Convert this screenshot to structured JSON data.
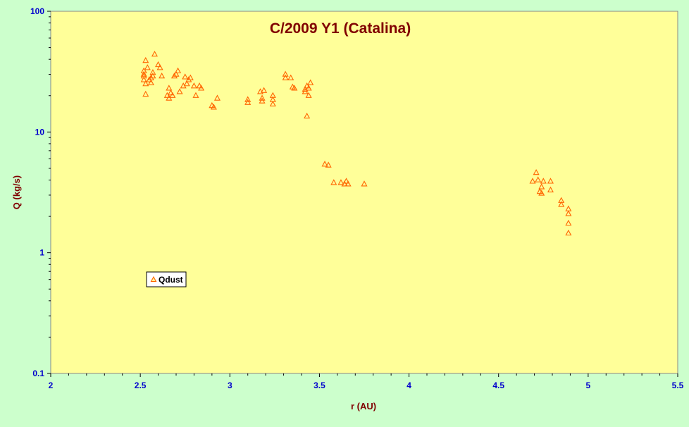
{
  "chart_data": {
    "type": "scatter",
    "title": "C/2009 Y1 (Catalina)",
    "xlabel": "r (AU)",
    "ylabel": "Q (kg/s)",
    "xlim": [
      2,
      5.5
    ],
    "ylim": [
      0.1,
      100
    ],
    "yscale": "log",
    "x_ticks": [
      "2",
      "2.5",
      "3",
      "3.5",
      "4",
      "4.5",
      "5",
      "5.5"
    ],
    "y_ticks": [
      "0.1",
      "1",
      "10",
      "100"
    ],
    "grid": false,
    "legend_position": "bottom-left",
    "colors": {
      "figure_bg": "#ccffcc",
      "plot_bg": "#ffff99",
      "marker": "#ff6600",
      "title": "#800000",
      "tick_labels": "#0000cc"
    },
    "series": [
      {
        "name": "Qdust",
        "marker": "triangle",
        "points": [
          [
            2.52,
            27
          ],
          [
            2.52,
            29
          ],
          [
            2.52,
            30
          ],
          [
            2.52,
            32
          ],
          [
            2.53,
            25
          ],
          [
            2.53,
            20.5
          ],
          [
            2.53,
            39
          ],
          [
            2.54,
            34
          ],
          [
            2.55,
            27
          ],
          [
            2.56,
            28
          ],
          [
            2.56,
            25.5
          ],
          [
            2.57,
            31
          ],
          [
            2.57,
            29
          ],
          [
            2.58,
            44
          ],
          [
            2.6,
            36
          ],
          [
            2.61,
            34
          ],
          [
            2.62,
            29
          ],
          [
            2.65,
            20
          ],
          [
            2.66,
            19
          ],
          [
            2.66,
            23
          ],
          [
            2.67,
            21
          ],
          [
            2.68,
            20
          ],
          [
            2.69,
            29
          ],
          [
            2.7,
            30
          ],
          [
            2.71,
            32
          ],
          [
            2.72,
            21.5
          ],
          [
            2.74,
            24
          ],
          [
            2.75,
            28.5
          ],
          [
            2.76,
            25
          ],
          [
            2.77,
            27
          ],
          [
            2.78,
            28
          ],
          [
            2.8,
            24
          ],
          [
            2.81,
            20
          ],
          [
            2.83,
            24
          ],
          [
            2.84,
            23
          ],
          [
            2.9,
            16.5
          ],
          [
            2.91,
            16
          ],
          [
            2.93,
            19
          ],
          [
            3.1,
            18.5
          ],
          [
            3.1,
            17.5
          ],
          [
            3.17,
            21.5
          ],
          [
            3.18,
            19
          ],
          [
            3.18,
            18
          ],
          [
            3.19,
            22
          ],
          [
            3.24,
            20
          ],
          [
            3.24,
            18.5
          ],
          [
            3.24,
            17
          ],
          [
            3.31,
            30
          ],
          [
            3.31,
            28
          ],
          [
            3.34,
            28
          ],
          [
            3.35,
            23.5
          ],
          [
            3.36,
            23
          ],
          [
            3.42,
            21.5
          ],
          [
            3.42,
            22.5
          ],
          [
            3.43,
            13.5
          ],
          [
            3.43,
            24
          ],
          [
            3.44,
            20
          ],
          [
            3.44,
            23
          ],
          [
            3.45,
            25.5
          ],
          [
            3.53,
            5.4
          ],
          [
            3.55,
            5.3
          ],
          [
            3.58,
            3.8
          ],
          [
            3.62,
            3.8
          ],
          [
            3.64,
            3.7
          ],
          [
            3.65,
            3.9
          ],
          [
            3.66,
            3.7
          ],
          [
            3.75,
            3.7
          ],
          [
            4.69,
            3.9
          ],
          [
            4.71,
            4.6
          ],
          [
            4.72,
            4.0
          ],
          [
            4.73,
            3.2
          ],
          [
            4.74,
            3.1
          ],
          [
            4.74,
            3.5
          ],
          [
            4.75,
            3.9
          ],
          [
            4.79,
            3.9
          ],
          [
            4.79,
            3.3
          ],
          [
            4.85,
            2.7
          ],
          [
            4.85,
            2.5
          ],
          [
            4.89,
            2.3
          ],
          [
            4.89,
            2.1
          ],
          [
            4.89,
            1.75
          ],
          [
            4.89,
            1.45
          ]
        ]
      }
    ]
  }
}
